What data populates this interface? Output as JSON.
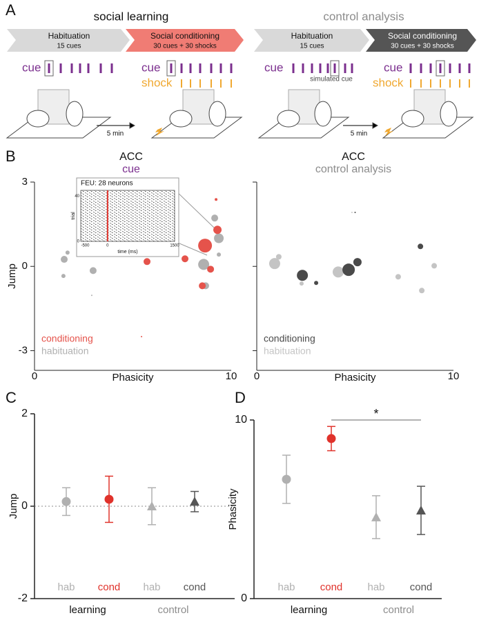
{
  "panel_labels": [
    "A",
    "B",
    "C",
    "D"
  ],
  "panel_a": {
    "left": {
      "title": "social learning",
      "stage1": {
        "name": "Habituation",
        "detail": "15 cues"
      },
      "stage2": {
        "name": "Social conditioning",
        "detail": "30 cues + 30 shocks"
      },
      "cue": "cue",
      "cue2": "cue",
      "shock": "shock",
      "delay": "5 min"
    },
    "right": {
      "title": "control analysis",
      "stage1": {
        "name": "Habituation",
        "detail": "15 cues"
      },
      "stage2": {
        "name": "Social conditioning",
        "detail": "30 cues + 30 shocks"
      },
      "cue": "cue",
      "cue2": "cue",
      "shock": "shock",
      "simulated": "simulated cue",
      "delay": "5 min"
    }
  },
  "chart_data": [
    {
      "type": "scatter",
      "title": "ACC",
      "subtitle": "cue",
      "subtitle_color": "#7b2f8e",
      "xlabel": "Phasicity",
      "ylabel": "Jump",
      "xlim": [
        0,
        10
      ],
      "xticks": [
        0,
        10
      ],
      "ylim": [
        -3.7,
        3
      ],
      "yticks": [
        3,
        0,
        -3
      ],
      "ytick_labels": true,
      "legend": "lower left",
      "series": [
        {
          "name": "habituation",
          "color": "#b0b0b0",
          "x": [
            1.51,
            1.68,
            1.47,
            2.98,
            9.16,
            9.37,
            8.6,
            9.37,
            8.7,
            2.91
          ],
          "values": [
            0.25,
            0.49,
            -0.34,
            -0.15,
            1.72,
            1.0,
            0.07,
            0.42,
            -0.69,
            -1.03
          ],
          "sizes": [
            5,
            3,
            3,
            5,
            5,
            7,
            8,
            3,
            5,
            1
          ]
        },
        {
          "name": "conditioning",
          "color": "#e5534b",
          "x": [
            9.23,
            9.3,
            8.67,
            7.65,
            5.72,
            8.95,
            8.53,
            5.44
          ],
          "values": [
            2.38,
            1.3,
            0.74,
            0.27,
            0.17,
            -0.1,
            -0.69,
            -2.5
          ],
          "sizes": [
            2,
            6,
            10,
            5,
            5,
            5,
            5,
            1
          ]
        }
      ]
    },
    {
      "type": "scatter",
      "title": "ACC",
      "subtitle": "control analysis",
      "subtitle_color": "#8c8c8c",
      "xlabel": "Phasicity",
      "xlim": [
        0,
        10
      ],
      "xticks": [
        0,
        10
      ],
      "ylim": [
        -3.7,
        3
      ],
      "yticks": [
        3,
        0,
        -3
      ],
      "ytick_labels": false,
      "legend": "lower left",
      "series": [
        {
          "name": "habituation",
          "color": "#c4c4c4",
          "x": [
            0.91,
            1.12,
            2.28,
            4.14,
            7.19,
            8.39,
            9.02,
            4.84
          ],
          "values": [
            0.1,
            0.34,
            -0.61,
            -0.2,
            -0.37,
            -0.86,
            0.02,
            1.92
          ],
          "sizes": [
            8,
            4,
            3,
            8,
            4,
            4,
            4,
            1
          ]
        },
        {
          "name": "conditioning",
          "color": "#4a4a4a",
          "x": [
            2.32,
            4.67,
            5.12,
            3.02,
            8.32,
            5.0
          ],
          "values": [
            -0.32,
            -0.12,
            0.15,
            -0.59,
            0.71,
            1.92
          ],
          "sizes": [
            8,
            9,
            6,
            3,
            4,
            1
          ]
        }
      ]
    },
    {
      "type": "raster",
      "title": "FEU: 28 neurons",
      "xlabel": "time (ms)",
      "ylabel": "trial",
      "xlim": [
        -600,
        1500
      ],
      "xticks": [
        -500,
        0,
        1500
      ],
      "ylim": [
        0,
        45
      ],
      "yticks": [
        0,
        40
      ]
    },
    {
      "type": "points",
      "ylabel": "Jump",
      "ylim": [
        -2,
        2
      ],
      "yticks": [
        -2,
        0,
        2
      ],
      "zero_line": true,
      "categories": [
        "hab",
        "cond",
        "hab",
        "cond"
      ],
      "values": [
        0.1,
        0.15,
        0.0,
        0.1
      ],
      "errors": [
        0.3,
        0.5,
        0.4,
        0.22
      ],
      "colors": [
        "#b0b0b0",
        "#e0322b",
        "#b0b0b0",
        "#555555"
      ],
      "markers": [
        "circle",
        "circle",
        "triangle",
        "triangle"
      ],
      "groups": [
        {
          "name": "learning",
          "color": "#111111"
        },
        {
          "name": "control",
          "color": "#8c8c8c"
        }
      ]
    },
    {
      "type": "points",
      "ylabel": "Phasicity",
      "ylim": [
        0,
        10
      ],
      "yticks": [
        0,
        10
      ],
      "zero_line": false,
      "significance": "*",
      "categories": [
        "hab",
        "cond",
        "hab",
        "cond"
      ],
      "values": [
        6.68,
        8.96,
        4.56,
        4.94
      ],
      "errors": [
        1.35,
        0.68,
        1.2,
        1.35
      ],
      "colors": [
        "#b0b0b0",
        "#e0322b",
        "#b0b0b0",
        "#555555"
      ],
      "markers": [
        "circle",
        "circle",
        "triangle",
        "triangle"
      ],
      "groups": [
        {
          "name": "learning",
          "color": "#111111"
        },
        {
          "name": "control",
          "color": "#8c8c8c"
        }
      ]
    }
  ]
}
